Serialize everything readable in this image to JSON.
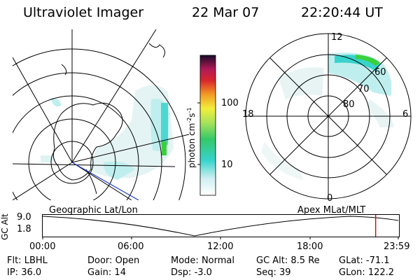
{
  "header": {
    "title": "Ultraviolet Imager",
    "date": "22 Mar 07",
    "time": "22:20:44 UT"
  },
  "colorbar": {
    "unit": "photon cm",
    "unit_sup1": "-2",
    "unit_s": "s",
    "unit_sup2": "-1",
    "tick_100": "100",
    "tick_10": "10"
  },
  "polar_plot": {
    "mlt_12": "12",
    "mlt_18": "18",
    "mlt_6": "6",
    "mlt_0": "0",
    "lat_60": "60",
    "lat_70": "70",
    "lat_80": "80"
  },
  "timeline": {
    "left_title": "Geographic Lat/Lon",
    "right_title": "Apex MLat/MLT",
    "axis_label": "GC Alt",
    "y_top": "9.0",
    "y_bottom": "1.8",
    "x_ticks": [
      "00:00",
      "06:00",
      "12:00",
      "18:00",
      "23:59"
    ],
    "current_time_fraction": 0.9363
  },
  "info": {
    "row1": [
      {
        "label": "Flt:",
        "value": "LBHL"
      },
      {
        "label": "Door:",
        "value": "Open"
      },
      {
        "label": "Mode:",
        "value": "Normal"
      },
      {
        "label": "GC Alt:",
        "value": "8.5 Re"
      },
      {
        "label": "GLat:",
        "value": "-71.1"
      }
    ],
    "row2": [
      {
        "label": "IP:",
        "value": "36.0"
      },
      {
        "label": "Gain:",
        "value": "14"
      },
      {
        "label": "Dsp:",
        "value": "-3.0"
      },
      {
        "label": "Seq:",
        "value": "39"
      },
      {
        "label": "GLon:",
        "value": "122.2"
      }
    ]
  },
  "colors": {
    "track": "#1f3fd0",
    "marker": "#e00000",
    "aurora_green": "#39d13b",
    "aurora_cyan": "#37d3cc",
    "aurora_light": "#bfeeee"
  }
}
